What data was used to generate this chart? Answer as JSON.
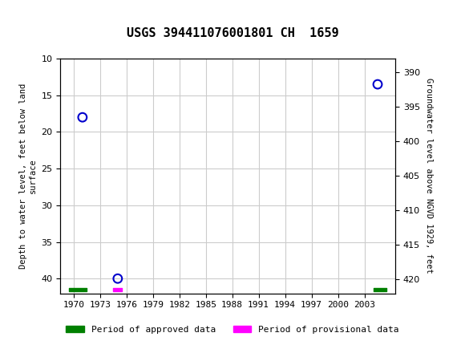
{
  "title": "USGS 394411076001801 CH  1659",
  "header_bg_color": "#006644",
  "header_text_color": "#ffffff",
  "plot_bg_color": "#ffffff",
  "grid_color": "#cccccc",
  "left_ylabel": "Depth to water level, feet below land\nsurface",
  "right_ylabel": "Groundwater level above NGVD 1929, feet",
  "xlabel": "",
  "ylim_left": [
    10,
    42
  ],
  "ylim_right": [
    388,
    422
  ],
  "xlim": [
    1968.5,
    2006.5
  ],
  "xtick_values": [
    1970,
    1973,
    1976,
    1979,
    1982,
    1985,
    1988,
    1991,
    1994,
    1997,
    2000,
    2003
  ],
  "ytick_left": [
    10,
    15,
    20,
    25,
    30,
    35,
    40
  ],
  "ytick_right": [
    390,
    395,
    400,
    405,
    410,
    415,
    420
  ],
  "data_points": [
    {
      "x": 1971.0,
      "y_depth": 18.0,
      "type": "circle"
    },
    {
      "x": 1975.0,
      "y_depth": 40.0,
      "type": "circle"
    },
    {
      "x": 2004.5,
      "y_depth": 13.5,
      "type": "circle"
    }
  ],
  "bar_approved": [
    {
      "x_start": 1969.5,
      "x_end": 1971.5
    },
    {
      "x_start": 2004.0,
      "x_end": 2005.5
    }
  ],
  "bar_provisional": [
    {
      "x_start": 1974.5,
      "x_end": 1975.5
    }
  ],
  "circle_color": "#0000cc",
  "circle_facecolor": "none",
  "circle_size": 60,
  "approved_color": "#008000",
  "provisional_color": "#ff00ff",
  "legend_approved": "Period of approved data",
  "legend_provisional": "Period of provisional data",
  "figsize": [
    5.8,
    4.3
  ],
  "dpi": 100
}
